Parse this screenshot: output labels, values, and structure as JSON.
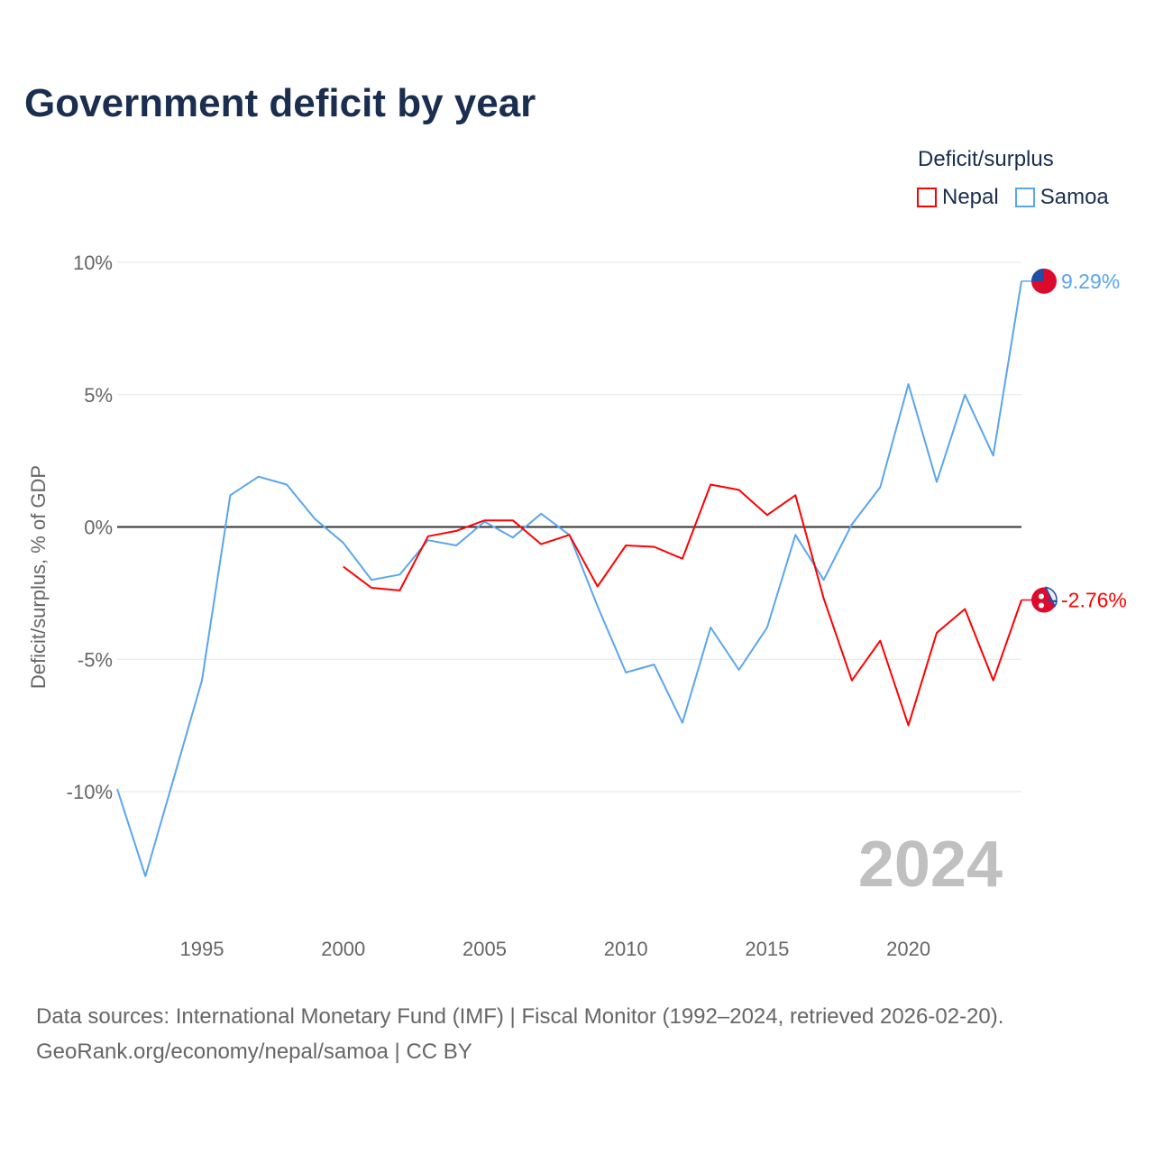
{
  "title": "Government deficit by year",
  "legend": {
    "title": "Deficit/surplus",
    "items": [
      {
        "name": "Nepal",
        "color": "#ff0000"
      },
      {
        "name": "Samoa",
        "color": "#5aa5ef"
      }
    ]
  },
  "footer": {
    "line1": "Data sources: International Monetary Fund (IMF) | Fiscal Monitor (1992–2024, retrieved 2026-02-20).",
    "line2": "GeoRank.org/economy/nepal/samoa | CC BY"
  },
  "chart_data": {
    "type": "line",
    "title": "Government deficit by year",
    "xlabel": "",
    "ylabel": "Deficit/surplus, % of GDP",
    "xlim": [
      1992,
      2024
    ],
    "ylim": [
      -13.5,
      10
    ],
    "x_ticks": [
      1995,
      2000,
      2005,
      2010,
      2015,
      2020
    ],
    "y_ticks": [
      {
        "v": 10,
        "label": "10%"
      },
      {
        "v": 5,
        "label": "5%"
      },
      {
        "v": 0,
        "label": "0%"
      },
      {
        "v": -5,
        "label": "-5%"
      },
      {
        "v": -10,
        "label": "-10%"
      }
    ],
    "year_watermark": "2024",
    "series": [
      {
        "name": "Samoa",
        "color": "#5aa5ef",
        "end_label": "9.29%",
        "flag": "samoa-flag",
        "x": [
          1992,
          1993,
          1994,
          1995,
          1996,
          1997,
          1998,
          1999,
          2000,
          2001,
          2002,
          2003,
          2004,
          2005,
          2006,
          2007,
          2008,
          2009,
          2010,
          2011,
          2012,
          2013,
          2014,
          2015,
          2016,
          2017,
          2018,
          2019,
          2020,
          2021,
          2022,
          2023,
          2024
        ],
        "values": [
          -9.9,
          -13.2,
          -9.5,
          -5.8,
          1.2,
          1.9,
          1.6,
          0.3,
          -0.6,
          -2.0,
          -1.8,
          -0.5,
          -0.7,
          0.2,
          -0.4,
          0.5,
          -0.3,
          -3.0,
          -5.5,
          -5.2,
          -7.4,
          -3.8,
          -5.4,
          -3.8,
          -0.3,
          -2.0,
          0.1,
          1.5,
          5.4,
          1.7,
          5.0,
          2.7,
          9.29
        ]
      },
      {
        "name": "Nepal",
        "color": "#ff0000",
        "end_label": "-2.76%",
        "flag": "nepal-flag",
        "x": [
          2000,
          2001,
          2002,
          2003,
          2004,
          2005,
          2006,
          2007,
          2008,
          2009,
          2010,
          2011,
          2012,
          2013,
          2014,
          2015,
          2016,
          2017,
          2018,
          2019,
          2020,
          2021,
          2022,
          2023,
          2024
        ],
        "values": [
          -1.5,
          -2.3,
          -2.4,
          -0.35,
          -0.15,
          0.25,
          0.25,
          -0.65,
          -0.3,
          -2.25,
          -0.7,
          -0.75,
          -1.2,
          1.6,
          1.4,
          0.45,
          1.2,
          -2.7,
          -5.8,
          -4.3,
          -7.5,
          -4.0,
          -3.1,
          -5.8,
          -2.76
        ]
      }
    ]
  }
}
